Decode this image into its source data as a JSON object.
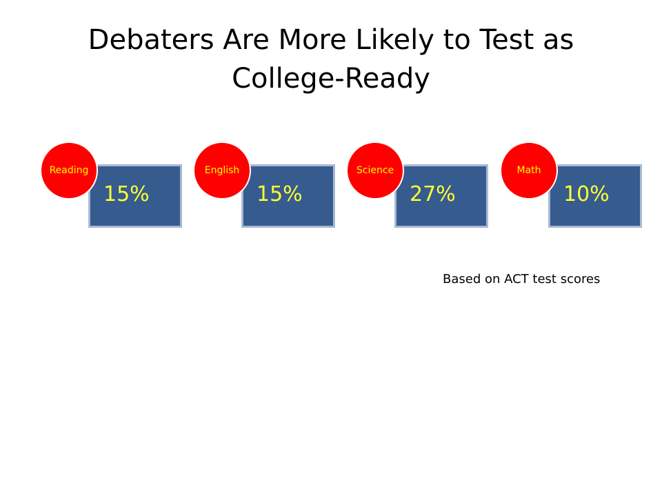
{
  "slide": {
    "title_line1": "Debaters Are More Likely to Test as",
    "title_line2": "College-Ready",
    "note": "Based on ACT test scores",
    "colors": {
      "badge": "#ff0000",
      "badge_text": "#ffff00",
      "box": "#365b8f",
      "box_border": "#a9b8d3",
      "value_text": "#ffff33"
    },
    "cards": [
      {
        "label": "Reading",
        "value": "15%"
      },
      {
        "label": "English",
        "value": "15%"
      },
      {
        "label": "Science",
        "value": "27%"
      },
      {
        "label": "Math",
        "value": "10%"
      }
    ]
  }
}
